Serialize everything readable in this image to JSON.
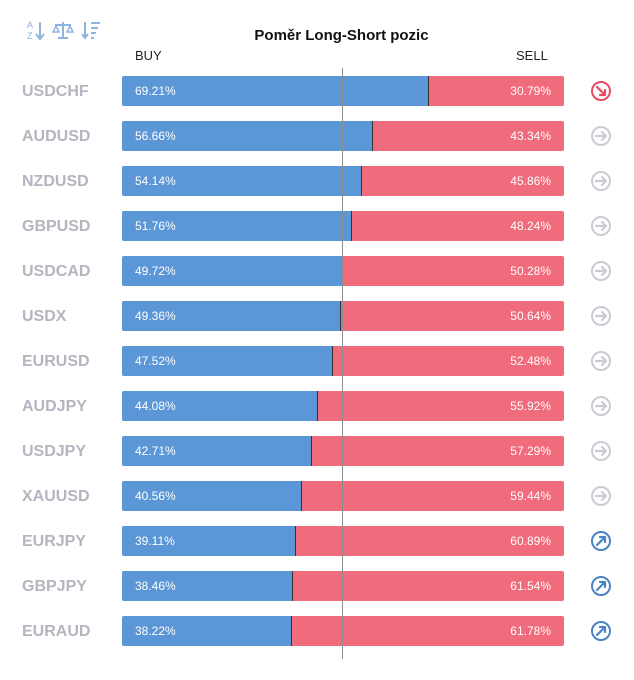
{
  "title": "Poměr Long-Short pozic",
  "labels": {
    "buy": "BUY",
    "sell": "SELL"
  },
  "toolbar": [
    {
      "name": "sort-alpha-icon"
    },
    {
      "name": "balance-icon"
    },
    {
      "name": "sort-numeric-icon"
    }
  ],
  "colors": {
    "buy": "#5b96d6",
    "sell": "#f06b7b",
    "neutral": "#c9ccd3",
    "up": "#4a82c4",
    "down": "#e84b5f"
  },
  "chart_data": {
    "type": "bar",
    "title": "Poměr Long-Short pozic",
    "xlim": [
      0,
      100
    ],
    "series": [
      {
        "name": "BUY",
        "values": [
          69.21,
          56.66,
          54.14,
          51.76,
          49.72,
          49.36,
          47.52,
          44.08,
          42.71,
          40.56,
          39.11,
          38.46,
          38.22
        ]
      },
      {
        "name": "SELL",
        "values": [
          30.79,
          43.34,
          45.86,
          48.24,
          50.28,
          50.64,
          52.48,
          55.92,
          57.29,
          59.44,
          60.89,
          61.54,
          61.78
        ]
      }
    ],
    "rows": [
      {
        "symbol": "USDCHF",
        "buy": 69.21,
        "sell": 30.79,
        "buy_label": "69.21%",
        "sell_label": "30.79%",
        "signal": "down"
      },
      {
        "symbol": "AUDUSD",
        "buy": 56.66,
        "sell": 43.34,
        "buy_label": "56.66%",
        "sell_label": "43.34%",
        "signal": "neutral"
      },
      {
        "symbol": "NZDUSD",
        "buy": 54.14,
        "sell": 45.86,
        "buy_label": "54.14%",
        "sell_label": "45.86%",
        "signal": "neutral"
      },
      {
        "symbol": "GBPUSD",
        "buy": 51.76,
        "sell": 48.24,
        "buy_label": "51.76%",
        "sell_label": "48.24%",
        "signal": "neutral"
      },
      {
        "symbol": "USDCAD",
        "buy": 49.72,
        "sell": 50.28,
        "buy_label": "49.72%",
        "sell_label": "50.28%",
        "signal": "neutral"
      },
      {
        "symbol": "USDX",
        "buy": 49.36,
        "sell": 50.64,
        "buy_label": "49.36%",
        "sell_label": "50.64%",
        "signal": "neutral"
      },
      {
        "symbol": "EURUSD",
        "buy": 47.52,
        "sell": 52.48,
        "buy_label": "47.52%",
        "sell_label": "52.48%",
        "signal": "neutral"
      },
      {
        "symbol": "AUDJPY",
        "buy": 44.08,
        "sell": 55.92,
        "buy_label": "44.08%",
        "sell_label": "55.92%",
        "signal": "neutral"
      },
      {
        "symbol": "USDJPY",
        "buy": 42.71,
        "sell": 57.29,
        "buy_label": "42.71%",
        "sell_label": "57.29%",
        "signal": "neutral"
      },
      {
        "symbol": "XAUUSD",
        "buy": 40.56,
        "sell": 59.44,
        "buy_label": "40.56%",
        "sell_label": "59.44%",
        "signal": "neutral"
      },
      {
        "symbol": "EURJPY",
        "buy": 39.11,
        "sell": 60.89,
        "buy_label": "39.11%",
        "sell_label": "60.89%",
        "signal": "up"
      },
      {
        "symbol": "GBPJPY",
        "buy": 38.46,
        "sell": 61.54,
        "buy_label": "38.46%",
        "sell_label": "61.54%",
        "signal": "up"
      },
      {
        "symbol": "EURAUD",
        "buy": 38.22,
        "sell": 61.78,
        "buy_label": "38.22%",
        "sell_label": "61.78%",
        "signal": "up"
      }
    ]
  }
}
